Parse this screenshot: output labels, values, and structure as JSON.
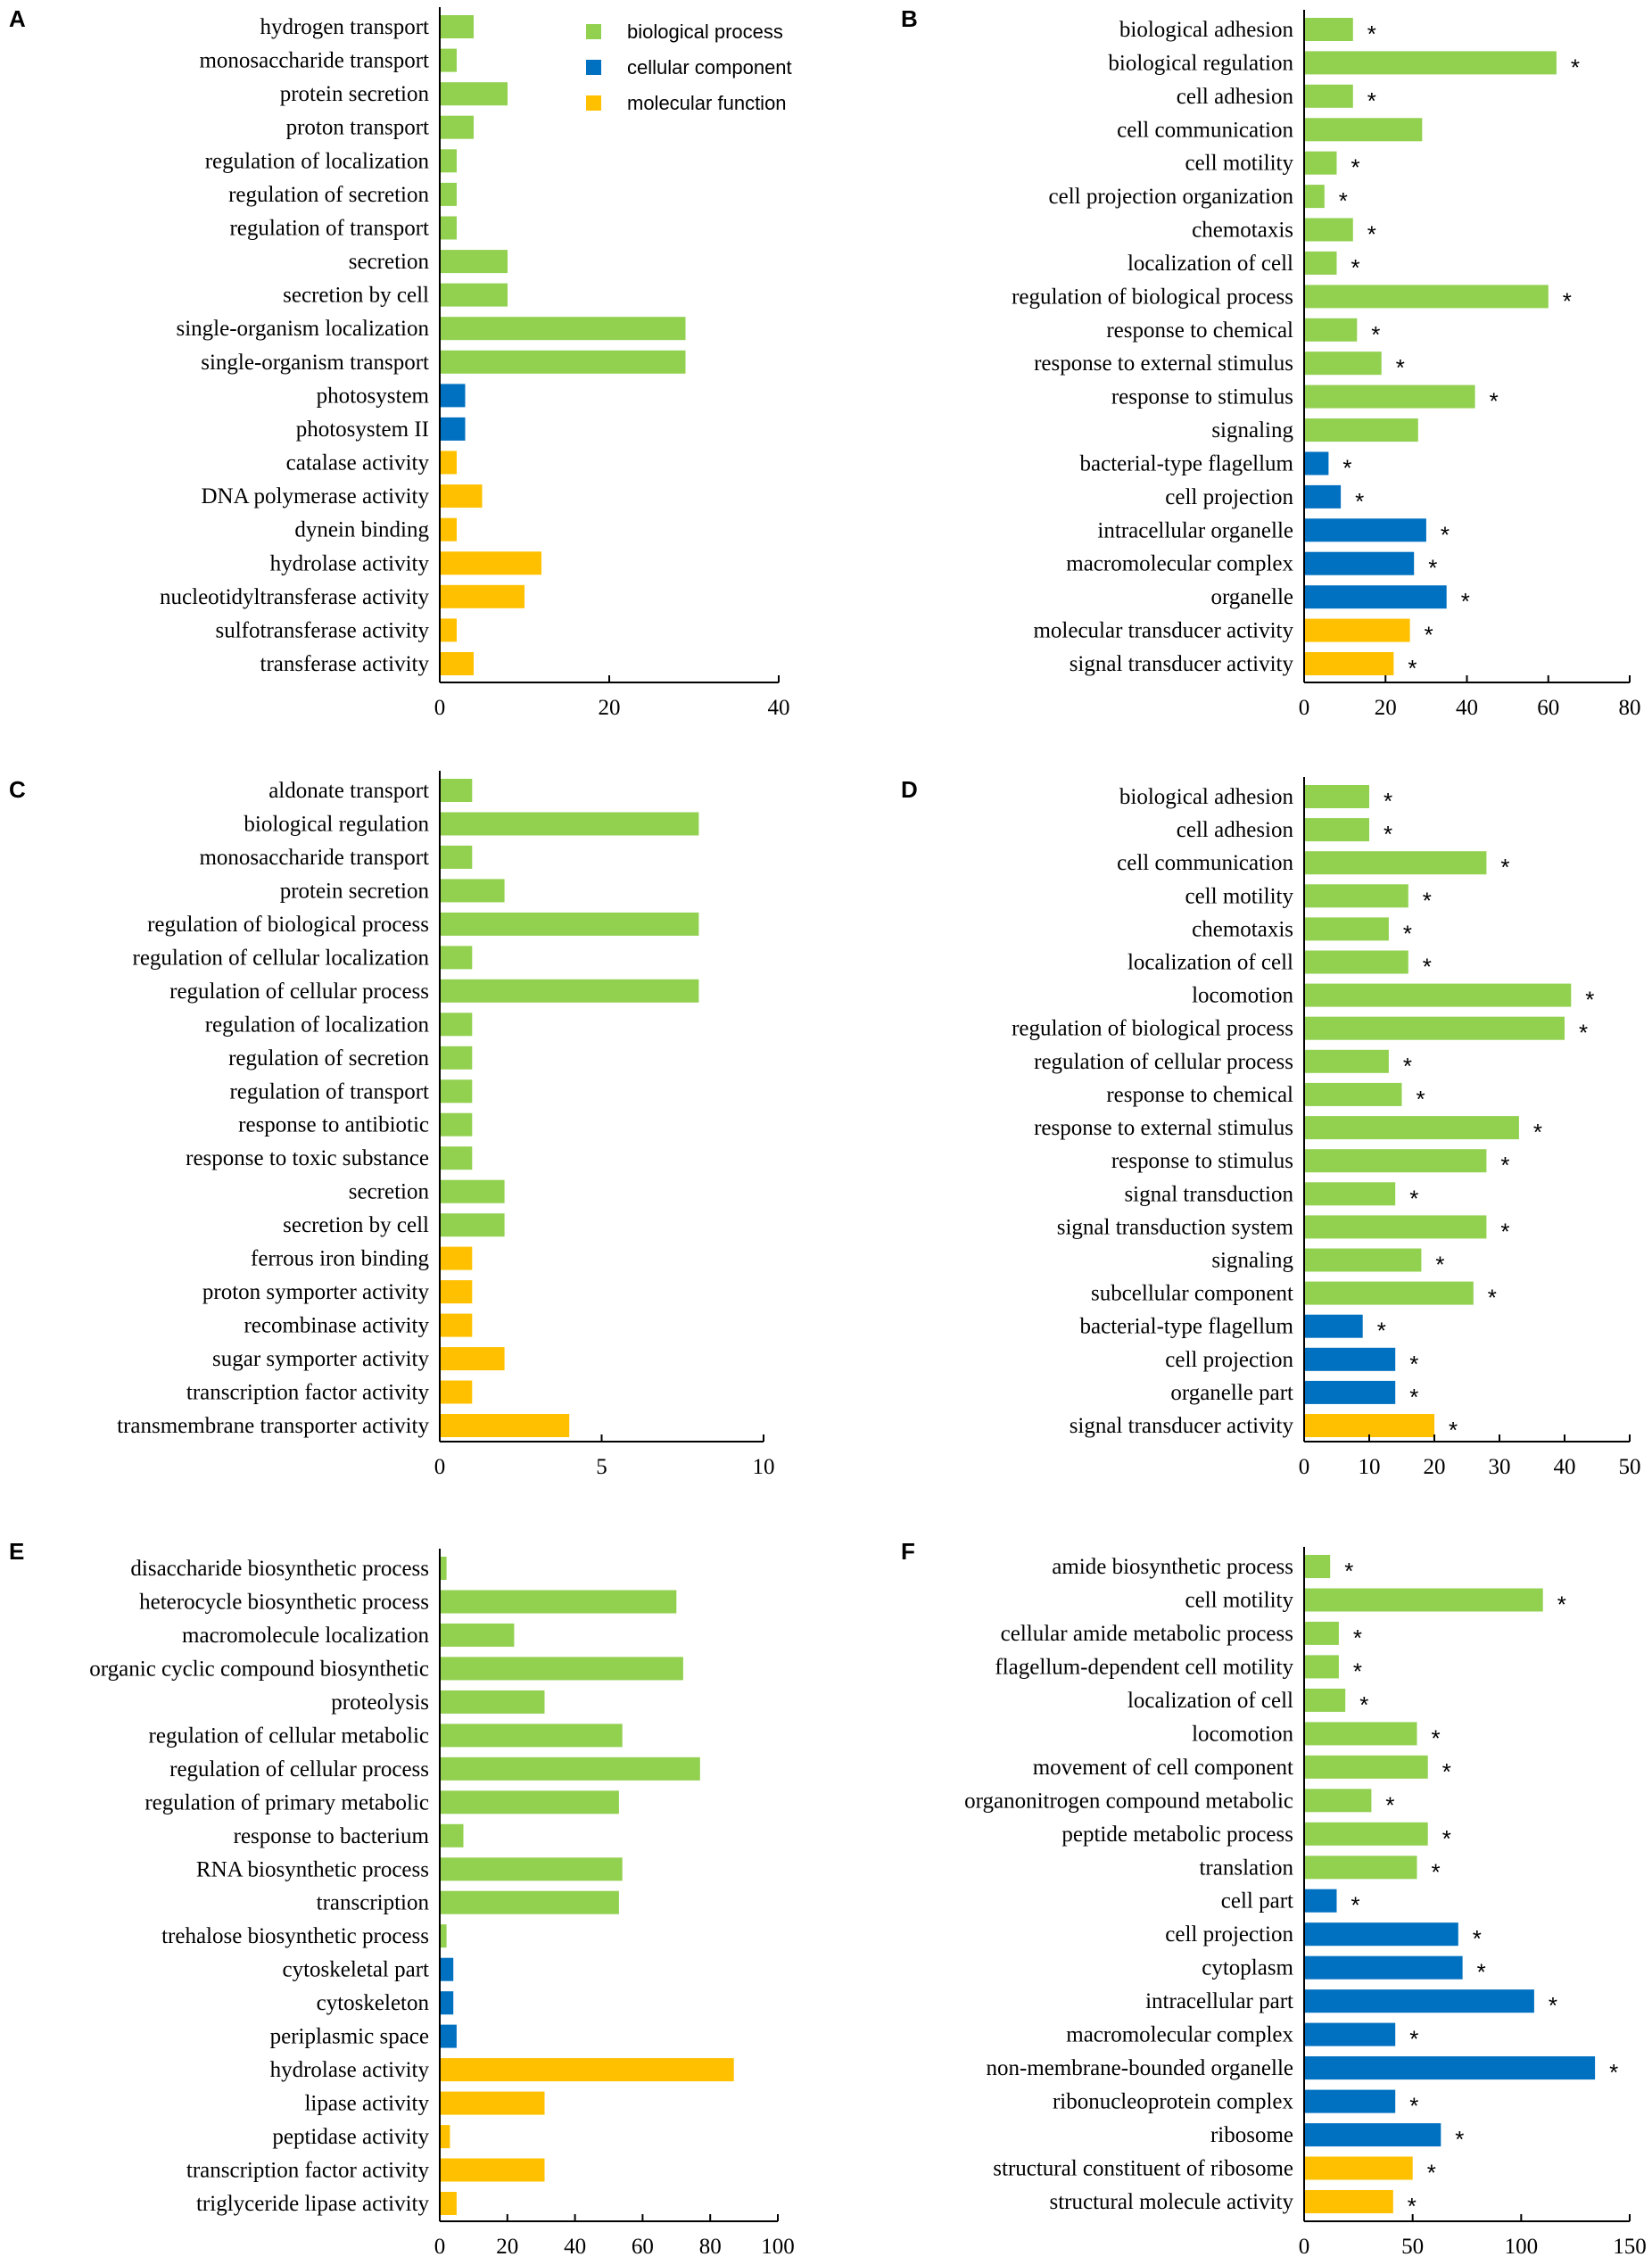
{
  "colors": {
    "biological_process": "#92d050",
    "cellular_component": "#0070c0",
    "molecular_function": "#ffc000"
  },
  "legend": [
    {
      "key": "biological_process",
      "label": "biological process"
    },
    {
      "key": "cellular_component",
      "label": "cellular component"
    },
    {
      "key": "molecular_function",
      "label": "molecular function"
    }
  ],
  "chart_data": [
    {
      "panel": "A",
      "type": "bar",
      "orientation": "horizontal",
      "xlim": [
        0,
        40
      ],
      "xticks": [
        0,
        20,
        40
      ],
      "show_legend": true,
      "categories": [
        "hydrogen transport",
        "monosaccharide transport",
        "protein secretion",
        "proton transport",
        "regulation of localization",
        "regulation of secretion",
        "regulation of transport",
        "secretion",
        "secretion by cell",
        "single-organism localization",
        "single-organism transport",
        "photosystem",
        "photosystem II",
        "catalase activity",
        "DNA polymerase activity",
        "dynein binding",
        "hydrolase activity",
        "nucleotidyltransferase activity",
        "sulfotransferase activity",
        "transferase activity"
      ],
      "values": [
        4,
        2,
        8,
        4,
        2,
        2,
        2,
        8,
        8,
        29,
        29,
        3,
        3,
        2,
        5,
        2,
        12,
        10,
        2,
        4
      ],
      "groups": [
        "biological_process",
        "biological_process",
        "biological_process",
        "biological_process",
        "biological_process",
        "biological_process",
        "biological_process",
        "biological_process",
        "biological_process",
        "biological_process",
        "biological_process",
        "cellular_component",
        "cellular_component",
        "molecular_function",
        "molecular_function",
        "molecular_function",
        "molecular_function",
        "molecular_function",
        "molecular_function",
        "molecular_function"
      ],
      "significant": [
        false,
        false,
        false,
        false,
        false,
        false,
        false,
        false,
        false,
        false,
        false,
        false,
        false,
        false,
        false,
        false,
        false,
        false,
        false,
        false
      ]
    },
    {
      "panel": "B",
      "type": "bar",
      "orientation": "horizontal",
      "xlim": [
        0,
        80
      ],
      "xticks": [
        0,
        20,
        40,
        60,
        80
      ],
      "show_legend": false,
      "categories": [
        "biological adhesion",
        "biological regulation",
        "cell adhesion",
        "cell communication",
        "cell motility",
        "cell projection organization",
        "chemotaxis",
        "localization of cell",
        "regulation of biological process",
        "response to chemical",
        "response to external stimulus",
        "response to stimulus",
        "signaling",
        "bacterial-type flagellum",
        "cell projection",
        "intracellular organelle",
        "macromolecular complex",
        "organelle",
        "molecular transducer activity",
        "signal transducer activity"
      ],
      "values": [
        12,
        62,
        12,
        29,
        8,
        5,
        12,
        8,
        60,
        13,
        19,
        42,
        28,
        6,
        9,
        30,
        27,
        35,
        26,
        22
      ],
      "groups": [
        "biological_process",
        "biological_process",
        "biological_process",
        "biological_process",
        "biological_process",
        "biological_process",
        "biological_process",
        "biological_process",
        "biological_process",
        "biological_process",
        "biological_process",
        "biological_process",
        "biological_process",
        "cellular_component",
        "cellular_component",
        "cellular_component",
        "cellular_component",
        "cellular_component",
        "molecular_function",
        "molecular_function"
      ],
      "significant": [
        true,
        true,
        true,
        false,
        true,
        true,
        true,
        true,
        true,
        true,
        true,
        true,
        false,
        true,
        true,
        true,
        true,
        true,
        true,
        true
      ]
    },
    {
      "panel": "C",
      "type": "bar",
      "orientation": "horizontal",
      "xlim": [
        0,
        10
      ],
      "xticks": [
        0,
        5,
        10
      ],
      "show_legend": false,
      "categories": [
        "aldonate transport",
        "biological regulation",
        "monosaccharide transport",
        "protein secretion",
        "regulation of biological process",
        "regulation of cellular localization",
        "regulation of cellular process",
        "regulation of localization",
        "regulation of secretion",
        "regulation of transport",
        "response to antibiotic",
        "response to toxic substance",
        "secretion",
        "secretion by cell",
        "ferrous iron binding",
        "proton symporter activity",
        "recombinase activity",
        "sugar symporter activity",
        "transcription factor activity",
        "transmembrane transporter activity"
      ],
      "values": [
        1,
        8,
        1,
        2,
        8,
        1,
        8,
        1,
        1,
        1,
        1,
        1,
        2,
        2,
        1,
        1,
        1,
        2,
        1,
        4
      ],
      "groups": [
        "biological_process",
        "biological_process",
        "biological_process",
        "biological_process",
        "biological_process",
        "biological_process",
        "biological_process",
        "biological_process",
        "biological_process",
        "biological_process",
        "biological_process",
        "biological_process",
        "biological_process",
        "biological_process",
        "molecular_function",
        "molecular_function",
        "molecular_function",
        "molecular_function",
        "molecular_function",
        "molecular_function"
      ],
      "significant": [
        false,
        false,
        false,
        false,
        false,
        false,
        false,
        false,
        false,
        false,
        false,
        false,
        false,
        false,
        false,
        false,
        false,
        false,
        false,
        false
      ]
    },
    {
      "panel": "D",
      "type": "bar",
      "orientation": "horizontal",
      "xlim": [
        0,
        50
      ],
      "xticks": [
        0,
        10,
        20,
        30,
        40,
        50
      ],
      "show_legend": false,
      "categories": [
        "biological adhesion",
        "cell adhesion",
        "cell communication",
        "cell motility",
        "chemotaxis",
        "localization of cell",
        "locomotion",
        "regulation of biological process",
        "regulation of cellular process",
        "response to chemical",
        "response to external stimulus",
        "response to stimulus",
        "signal transduction",
        "signal transduction system",
        "signaling",
        "subcellular component",
        "bacterial-type flagellum",
        "cell projection",
        "organelle part",
        "signal transducer activity"
      ],
      "values": [
        10,
        10,
        28,
        16,
        13,
        16,
        41,
        40,
        13,
        15,
        33,
        28,
        14,
        28,
        18,
        26,
        9,
        14,
        14,
        20
      ],
      "groups": [
        "biological_process",
        "biological_process",
        "biological_process",
        "biological_process",
        "biological_process",
        "biological_process",
        "biological_process",
        "biological_process",
        "biological_process",
        "biological_process",
        "biological_process",
        "biological_process",
        "biological_process",
        "biological_process",
        "biological_process",
        "biological_process",
        "cellular_component",
        "cellular_component",
        "cellular_component",
        "molecular_function"
      ],
      "significant": [
        true,
        true,
        true,
        true,
        true,
        true,
        true,
        true,
        true,
        true,
        true,
        true,
        true,
        true,
        true,
        true,
        true,
        true,
        true,
        true
      ]
    },
    {
      "panel": "E",
      "type": "bar",
      "orientation": "horizontal",
      "xlim": [
        0,
        100
      ],
      "xticks": [
        0,
        20,
        40,
        60,
        80,
        100
      ],
      "show_legend": false,
      "categories": [
        "disaccharide biosynthetic process",
        "heterocycle biosynthetic process",
        "macromolecule localization",
        "organic cyclic compound biosynthetic",
        "proteolysis",
        "regulation of cellular metabolic",
        "regulation of cellular process",
        "regulation of primary metabolic",
        "response to bacterium",
        "RNA biosynthetic process",
        "transcription",
        "trehalose biosynthetic process",
        "cytoskeletal part",
        "cytoskeleton",
        "periplasmic space",
        "hydrolase activity",
        "lipase activity",
        "peptidase activity",
        "transcription factor activity",
        "triglyceride lipase activity"
      ],
      "values": [
        2,
        70,
        22,
        72,
        31,
        54,
        77,
        53,
        7,
        54,
        53,
        2,
        4,
        4,
        5,
        87,
        31,
        3,
        31,
        5
      ],
      "groups": [
        "biological_process",
        "biological_process",
        "biological_process",
        "biological_process",
        "biological_process",
        "biological_process",
        "biological_process",
        "biological_process",
        "biological_process",
        "biological_process",
        "biological_process",
        "biological_process",
        "cellular_component",
        "cellular_component",
        "cellular_component",
        "molecular_function",
        "molecular_function",
        "molecular_function",
        "molecular_function",
        "molecular_function"
      ],
      "significant": [
        false,
        false,
        false,
        false,
        false,
        false,
        false,
        false,
        false,
        false,
        false,
        false,
        false,
        false,
        false,
        false,
        false,
        false,
        false,
        false
      ]
    },
    {
      "panel": "F",
      "type": "bar",
      "orientation": "horizontal",
      "xlim": [
        0,
        150
      ],
      "xticks": [
        0,
        50,
        100,
        150
      ],
      "show_legend": false,
      "categories": [
        "amide biosynthetic process",
        "cell motility",
        "cellular amide metabolic process",
        "flagellum-dependent cell motility",
        "localization of cell",
        "locomotion",
        "movement of cell component",
        "organonitrogen compound metabolic",
        "peptide metabolic process",
        "translation",
        "cell part",
        "cell projection",
        "cytoplasm",
        "intracellular part",
        "macromolecular complex",
        "non-membrane-bounded organelle",
        "ribonucleoprotein complex",
        "ribosome",
        "structural constituent of ribosome",
        "structural molecule activity"
      ],
      "values": [
        12,
        110,
        16,
        16,
        19,
        52,
        57,
        31,
        57,
        52,
        15,
        71,
        73,
        106,
        42,
        134,
        42,
        63,
        50,
        41
      ],
      "groups": [
        "biological_process",
        "biological_process",
        "biological_process",
        "biological_process",
        "biological_process",
        "biological_process",
        "biological_process",
        "biological_process",
        "biological_process",
        "biological_process",
        "cellular_component",
        "cellular_component",
        "cellular_component",
        "cellular_component",
        "cellular_component",
        "cellular_component",
        "cellular_component",
        "cellular_component",
        "molecular_function",
        "molecular_function"
      ],
      "significant": [
        true,
        true,
        true,
        true,
        true,
        true,
        true,
        true,
        true,
        true,
        true,
        true,
        true,
        true,
        true,
        true,
        true,
        true,
        true,
        true
      ]
    }
  ]
}
